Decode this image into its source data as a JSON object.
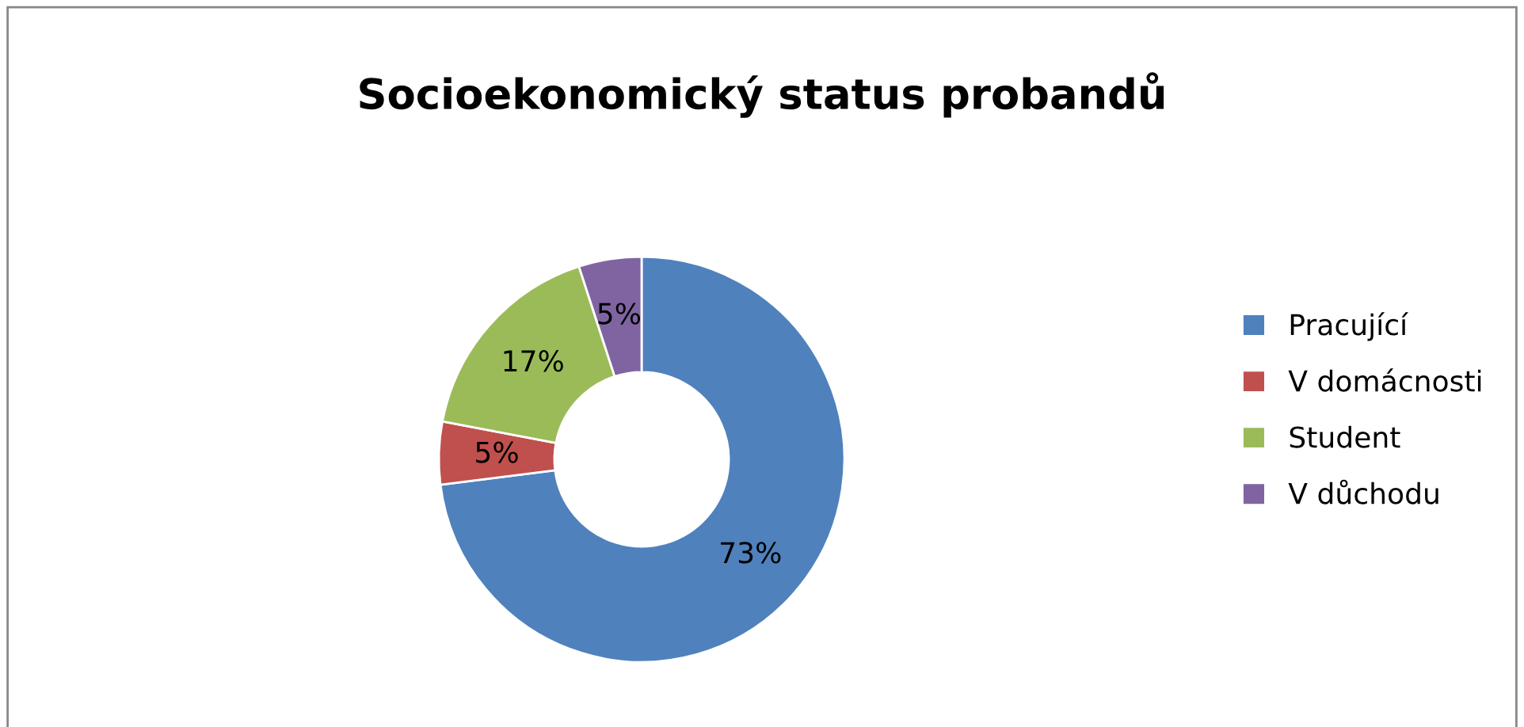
{
  "chart_data": {
    "type": "donut",
    "title": "Socioekonomický status probandů",
    "categories": [
      "Pracující",
      "V domácnosti",
      "Student",
      "V důchodu"
    ],
    "values": [
      73,
      5,
      17,
      5
    ],
    "colors": [
      "#4f81bd",
      "#c0504d",
      "#9bbb59",
      "#8064a2"
    ],
    "value_labels": [
      "73%",
      "5%",
      "17%",
      "5%"
    ],
    "legend": "right"
  }
}
